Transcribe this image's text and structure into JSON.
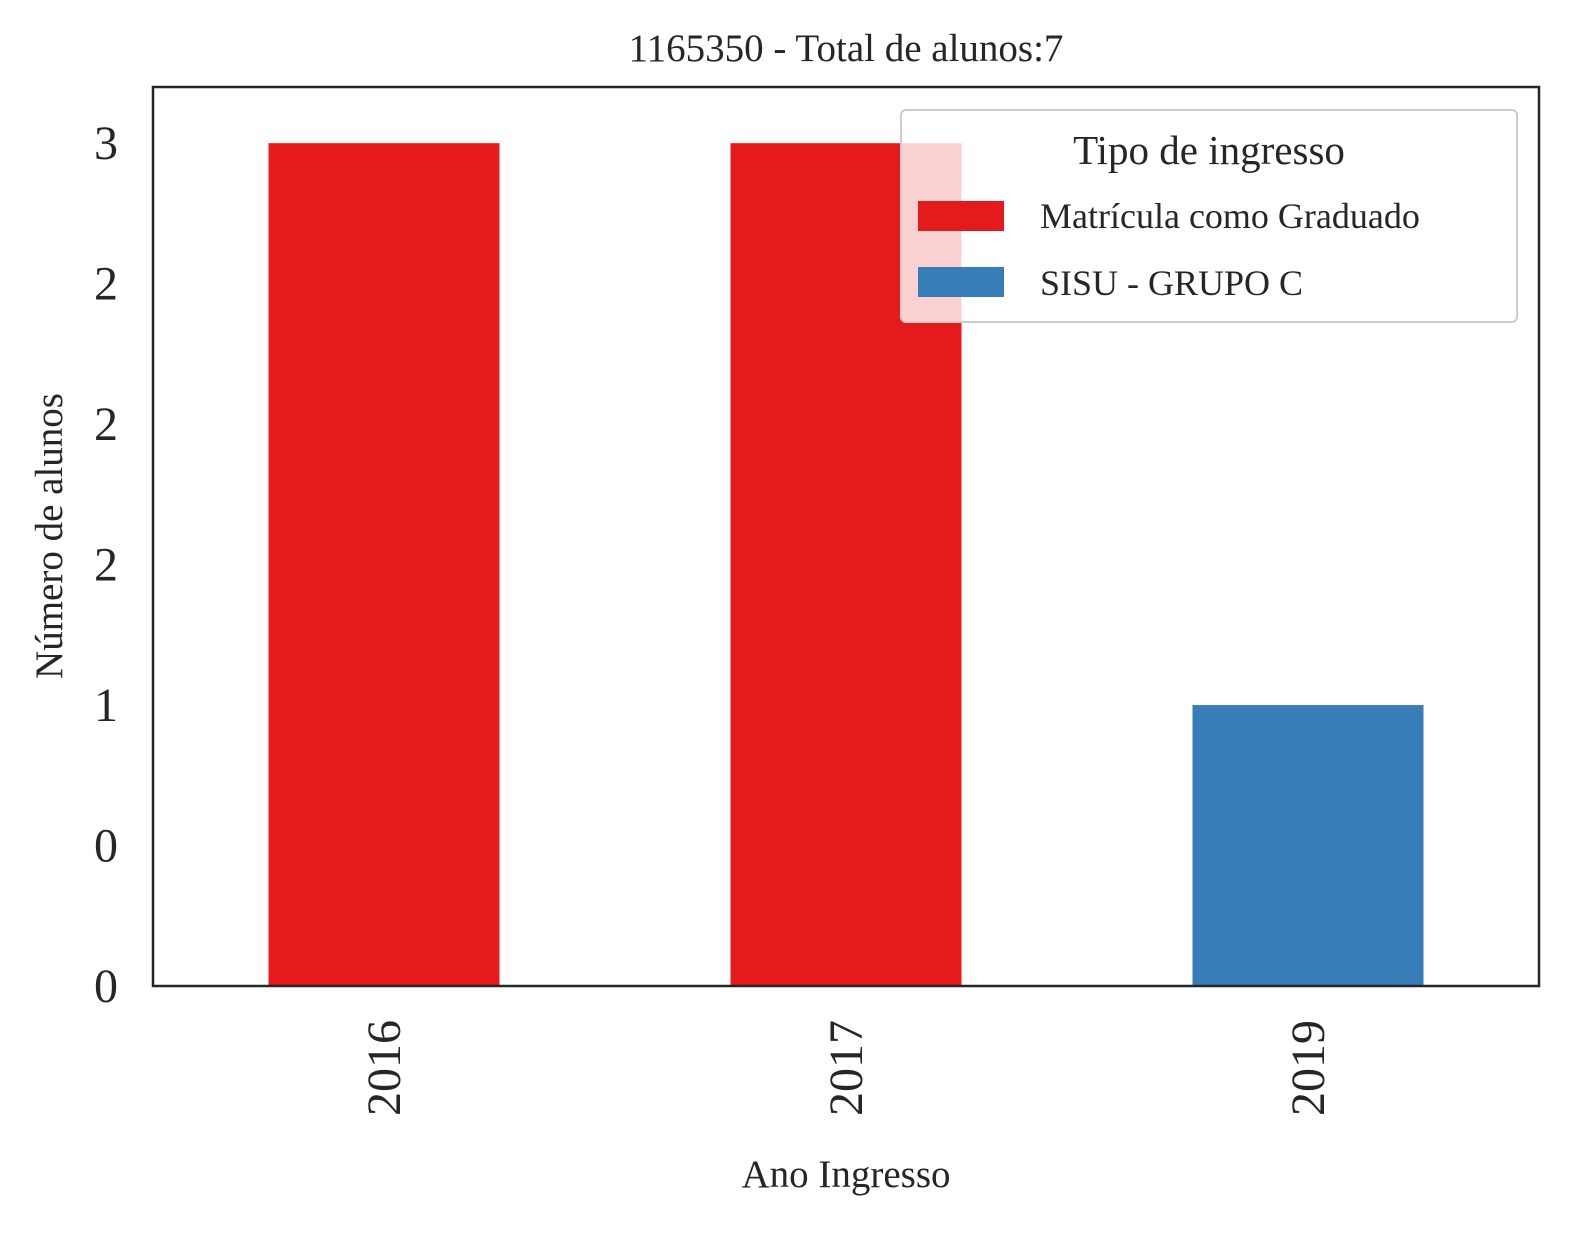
{
  "chart_data": {
    "type": "bar",
    "title": "1165350 - Total de alunos:7",
    "xlabel": "Ano Ingresso",
    "ylabel": "Número de alunos",
    "categories": [
      "2016",
      "2017",
      "2019"
    ],
    "series": [
      {
        "name": "Matrícula como Graduado",
        "values": [
          3,
          3,
          0
        ],
        "color": "#e41a1c"
      },
      {
        "name": "SISU - GRUPO C",
        "values": [
          0,
          0,
          1
        ],
        "color": "#377eb8"
      }
    ],
    "ylim": [
      0,
      3.2
    ],
    "yticks": [
      0,
      0.5,
      1,
      1.5,
      2,
      2.5,
      3
    ],
    "ytick_labels": [
      "0",
      "0",
      "1",
      "2",
      "2",
      "2",
      "3"
    ],
    "stacked": true,
    "grid": false,
    "legend": {
      "title": "Tipo de ingresso",
      "placement": "top-right"
    }
  }
}
